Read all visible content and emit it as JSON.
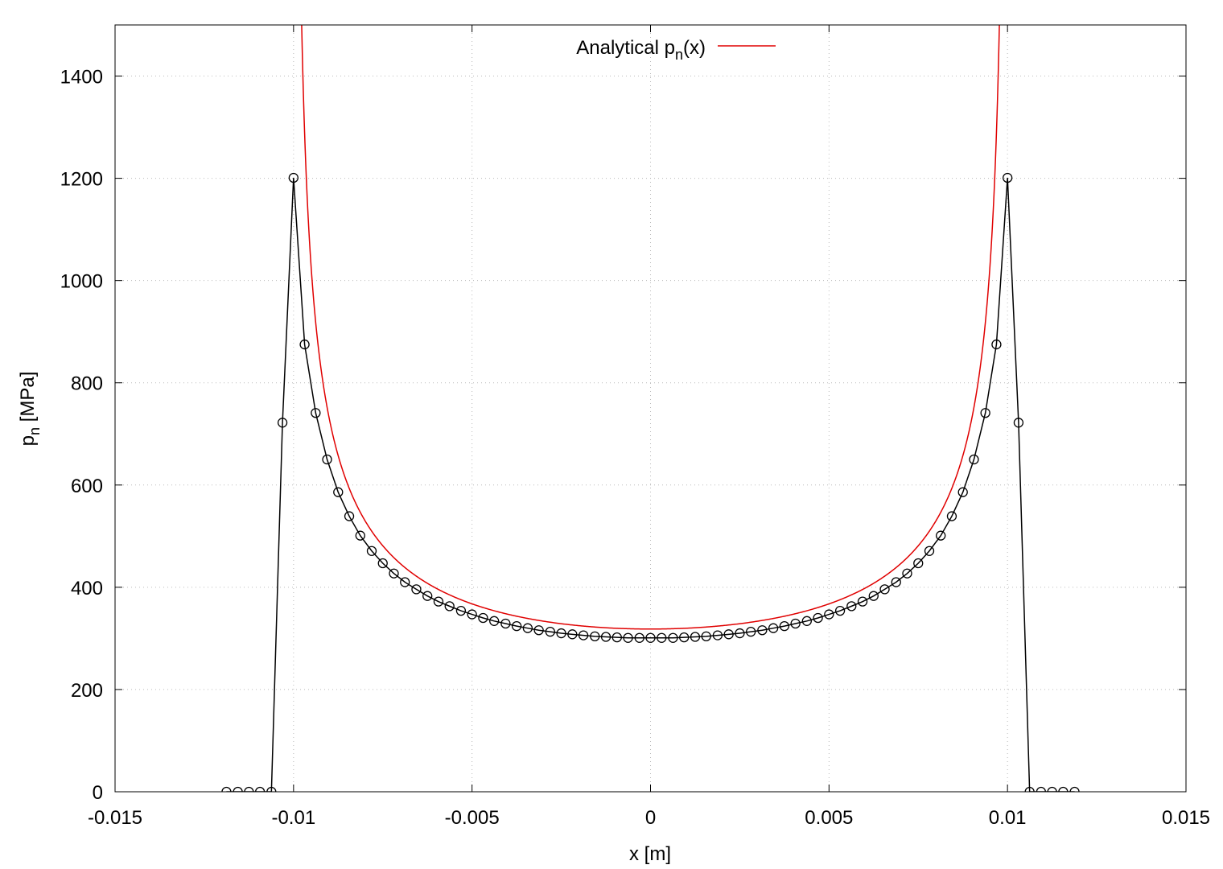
{
  "chart_data": {
    "type": "line",
    "xlabel": "x [m]",
    "ylabel": {
      "base": "p",
      "sub": "n",
      "rest": " [MPa]"
    },
    "xlim": [
      -0.015,
      0.015
    ],
    "ylim": [
      0,
      1500
    ],
    "grid": true,
    "legend_placement": "top-center",
    "x_ticks": [
      -0.015,
      -0.01,
      -0.005,
      0,
      0.005,
      0.01,
      0.015
    ],
    "x_tick_labels": [
      "-0.015",
      "-0.01",
      "-0.005",
      "0",
      "0.005",
      "0.01",
      "0.015"
    ],
    "y_ticks": [
      0,
      200,
      400,
      600,
      800,
      1000,
      1200,
      1400
    ],
    "y_tick_labels": [
      "0",
      "200",
      "400",
      "600",
      "800",
      "1000",
      "1200",
      "1400"
    ],
    "series": [
      {
        "name": {
          "base": "Analytical p",
          "sub": "n",
          "rest": "(x)"
        },
        "kind": "line",
        "color": "#e00000",
        "function": "analytical_contact_pressure",
        "p0": 318.3,
        "half_width": 0.01,
        "domain": [
          -0.01,
          0.01
        ]
      },
      {
        "kind": "line-points",
        "color": "#000000",
        "marker": "open-circle",
        "x": [
          -0.01188,
          -0.01156,
          -0.01125,
          -0.01094,
          -0.01062,
          -0.01031,
          -0.01,
          -0.00969,
          -0.00938,
          -0.00906,
          -0.00875,
          -0.00844,
          -0.00813,
          -0.00781,
          -0.0075,
          -0.00719,
          -0.00688,
          -0.00656,
          -0.00625,
          -0.00594,
          -0.00563,
          -0.00531,
          -0.005,
          -0.00469,
          -0.00438,
          -0.00406,
          -0.00375,
          -0.00344,
          -0.00313,
          -0.00281,
          -0.0025,
          -0.00219,
          -0.00188,
          -0.00156,
          -0.00125,
          -0.00094,
          -0.00063,
          -0.00031,
          0,
          0.00031,
          0.00063,
          0.00094,
          0.00125,
          0.00156,
          0.00188,
          0.00219,
          0.0025,
          0.00281,
          0.00313,
          0.00344,
          0.00375,
          0.00406,
          0.00438,
          0.00469,
          0.005,
          0.00531,
          0.00563,
          0.00594,
          0.00625,
          0.00656,
          0.00688,
          0.00719,
          0.0075,
          0.00781,
          0.00813,
          0.00844,
          0.00875,
          0.00906,
          0.00938,
          0.00969,
          0.01,
          0.01031,
          0.01062,
          0.01094,
          0.01125,
          0.01156,
          0.01188
        ],
        "y": [
          0,
          0,
          0,
          0,
          0,
          722,
          1201,
          875,
          741,
          650,
          586,
          539,
          501,
          471,
          447,
          427,
          410,
          396,
          383,
          372,
          363,
          354,
          347,
          340,
          334,
          329,
          324,
          320,
          316,
          313,
          310,
          308,
          306,
          304,
          303,
          302,
          301,
          301,
          301,
          301,
          301,
          302,
          303,
          304,
          306,
          308,
          310,
          313,
          316,
          320,
          324,
          329,
          334,
          340,
          347,
          354,
          363,
          372,
          383,
          396,
          410,
          427,
          447,
          471,
          501,
          539,
          586,
          650,
          741,
          875,
          1201,
          722,
          0,
          0,
          0,
          0,
          0
        ]
      }
    ]
  }
}
